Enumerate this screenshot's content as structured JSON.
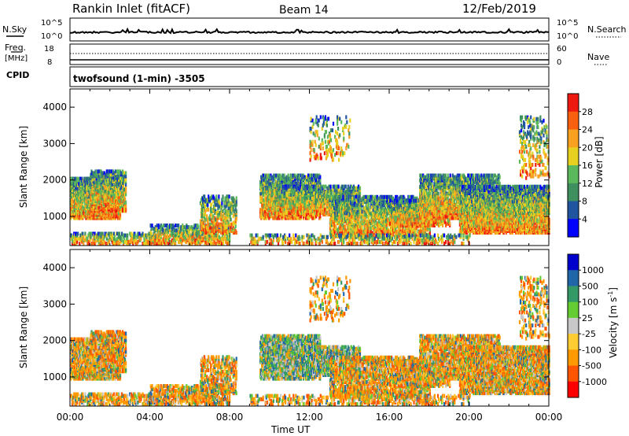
{
  "header": {
    "title": "Rankin Inlet (fitACF)",
    "beam": "Beam 14",
    "date": "12/Feb/2019"
  },
  "top_panels": {
    "nsky": {
      "label": "N.Sky",
      "scale_top": "10^5",
      "scale_bottom": "10^0",
      "right_label": "N.Search",
      "right_top": "10^5",
      "right_bottom": "10^0"
    },
    "freq": {
      "label": "Freq.",
      "unit": "[MHz]",
      "cpid_label": "CPID",
      "left_top": "18",
      "left_bottom": "8",
      "right_top": "60",
      "right_bottom": "0",
      "right_label": "Nave"
    },
    "cpid_text": "twofsound (1-min) -3505"
  },
  "colors": {
    "power": [
      "#0000ff",
      "#2255a0",
      "#3f8f5f",
      "#5cb85c",
      "#e8d020",
      "#f8a020",
      "#f86010",
      "#ee1a10"
    ],
    "velocity": [
      "#ff0000",
      "#ff5500",
      "#ff9900",
      "#ffcc33",
      "#c8c8c8",
      "#66cc33",
      "#339966",
      "#2266aa",
      "#0000cc"
    ]
  },
  "chart_data": [
    {
      "type": "heatmap",
      "name": "power",
      "ylabel": "Slant Range [km]",
      "yticks": [
        "1000",
        "2000",
        "3000",
        "4000"
      ],
      "ylim": [
        200,
        4500
      ],
      "xlim": [
        0,
        24
      ],
      "colorbar_label": "Power [dB]",
      "colorbar_ticks": [
        "4",
        "8",
        "12",
        "16",
        "20",
        "24",
        "28"
      ]
    },
    {
      "type": "heatmap",
      "name": "velocity",
      "ylabel": "Slant Range [km]",
      "yticks": [
        "1000",
        "2000",
        "3000",
        "4000"
      ],
      "ylim": [
        200,
        4500
      ],
      "xlim": [
        0,
        24
      ],
      "xlabel": "Time UT",
      "xticks": [
        "00:00",
        "04:00",
        "08:00",
        "12:00",
        "16:00",
        "20:00",
        "00:00"
      ],
      "colorbar_label": "Velocity [m s^-1]",
      "colorbar_ticks": [
        "1000",
        "500",
        "100",
        "25",
        "-25",
        "-100",
        "-500",
        "-1000"
      ]
    }
  ]
}
